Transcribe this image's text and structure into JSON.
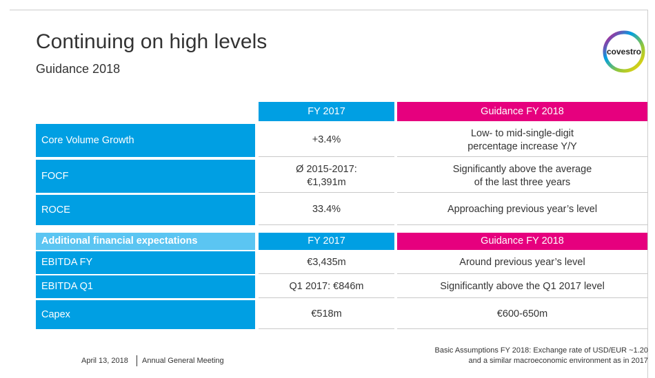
{
  "header": {
    "title": "Continuing on high levels",
    "subtitle": "Guidance 2018",
    "logo": "covestro"
  },
  "table": {
    "header": [
      "FY 2017",
      "Guidance FY 2018"
    ],
    "rows": [
      [
        "Core Volume Growth",
        [
          "+3.4%"
        ],
        [
          "Low- to mid-single-digit",
          "percentage increase Y/Y"
        ]
      ],
      [
        "FOCF",
        [
          "Ø 2015-2017:",
          "€1,391m"
        ],
        [
          "Significantly above the average",
          "of the last three years"
        ]
      ],
      [
        "ROCE",
        [
          "33.4%"
        ],
        [
          "Approaching previous year’s level"
        ]
      ]
    ]
  },
  "table2": {
    "header": [
      "Additional financial expectations",
      "FY 2017",
      "Guidance FY 2018"
    ],
    "rows": [
      [
        "EBITDA FY",
        [
          "€3,435m"
        ],
        [
          "Around previous year’s level"
        ]
      ],
      [
        "EBITDA Q1",
        [
          "Q1 2017: €846m"
        ],
        [
          "Significantly above the Q1 2017 level"
        ]
      ],
      [
        "Capex",
        [
          "€518m"
        ],
        [
          "€600-650m"
        ]
      ]
    ]
  },
  "footer": {
    "date": "April 13, 2018",
    "event": "Annual General Meeting",
    "note": [
      "Basic Assumptions FY 2018: Exchange rate of USD/EUR ~1.20",
      "and a similar macroeconomic environment as in 2017"
    ]
  }
}
